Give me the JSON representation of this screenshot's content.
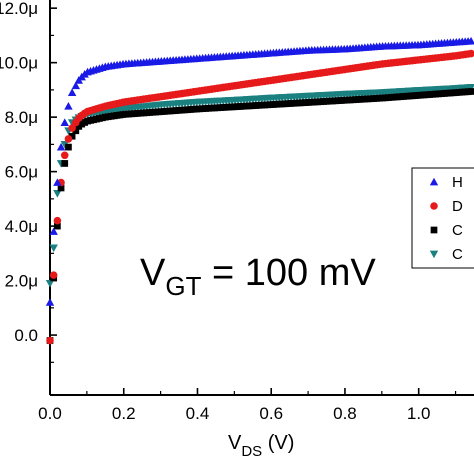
{
  "chart_data": {
    "type": "scatter",
    "x_ticks": [
      "0.0",
      "0.2",
      "0.4",
      "0.6",
      "0.8",
      "1.0"
    ],
    "y_ticks": [
      "0.0",
      "2.0μ",
      "4.0μ",
      "6.0μ",
      "8.0μ",
      "10.0μ",
      "12.0μ"
    ],
    "xlabel": {
      "main": "V",
      "sub": "DS",
      "rest": " (V)"
    },
    "ylabel": "",
    "xlim": [
      0,
      1.15
    ],
    "ylim": [
      -2.2,
      12.3
    ],
    "grid": false,
    "legend_position": "right",
    "annotation": {
      "main": "V",
      "sub": "GT",
      "rest": " = 100 mV"
    },
    "series": [
      {
        "name": "H",
        "color": "#1a1ae6",
        "marker": "triangle-up",
        "x": [
          0.0,
          0.01,
          0.02,
          0.03,
          0.04,
          0.05,
          0.06,
          0.08,
          0.1,
          0.15,
          0.2,
          0.3,
          0.4,
          0.5,
          0.6,
          0.7,
          0.8,
          0.9,
          1.0,
          1.1,
          1.15
        ],
        "y": [
          1.2,
          3.8,
          5.6,
          6.9,
          7.8,
          8.4,
          8.9,
          9.4,
          9.65,
          9.85,
          9.95,
          10.05,
          10.15,
          10.25,
          10.35,
          10.45,
          10.5,
          10.6,
          10.65,
          10.75,
          10.8
        ]
      },
      {
        "name": "D",
        "color": "#e61a1a",
        "marker": "circle",
        "x": [
          0.0,
          0.01,
          0.02,
          0.03,
          0.04,
          0.05,
          0.06,
          0.08,
          0.1,
          0.15,
          0.2,
          0.3,
          0.4,
          0.5,
          0.6,
          0.7,
          0.8,
          0.9,
          1.0,
          1.1,
          1.15
        ],
        "y": [
          -0.2,
          2.2,
          4.2,
          5.6,
          6.6,
          7.2,
          7.6,
          8.0,
          8.2,
          8.4,
          8.55,
          8.75,
          8.95,
          9.15,
          9.35,
          9.55,
          9.75,
          9.95,
          10.1,
          10.25,
          10.35
        ]
      },
      {
        "name": "C",
        "color": "#000000",
        "marker": "square",
        "x": [
          0.0,
          0.01,
          0.02,
          0.03,
          0.04,
          0.05,
          0.06,
          0.08,
          0.1,
          0.15,
          0.2,
          0.3,
          0.4,
          0.5,
          0.6,
          0.7,
          0.8,
          0.9,
          1.0,
          1.1,
          1.15
        ],
        "y": [
          -0.2,
          2.1,
          4.0,
          5.4,
          6.3,
          6.9,
          7.3,
          7.7,
          7.85,
          8.0,
          8.1,
          8.2,
          8.3,
          8.38,
          8.46,
          8.54,
          8.62,
          8.7,
          8.8,
          8.9,
          8.95
        ]
      },
      {
        "name": "C",
        "color": "#1a8080",
        "marker": "triangle-down",
        "x": [
          0.0,
          0.01,
          0.02,
          0.03,
          0.04,
          0.05,
          0.06,
          0.08,
          0.1,
          0.15,
          0.2,
          0.3,
          0.4,
          0.5,
          0.6,
          0.7,
          0.8,
          0.9,
          1.0,
          1.1,
          1.15
        ],
        "y": [
          1.9,
          3.2,
          5.2,
          6.3,
          7.0,
          7.5,
          7.8,
          8.0,
          8.1,
          8.2,
          8.3,
          8.45,
          8.55,
          8.62,
          8.7,
          8.77,
          8.84,
          8.9,
          8.98,
          9.05,
          9.1
        ]
      }
    ]
  }
}
